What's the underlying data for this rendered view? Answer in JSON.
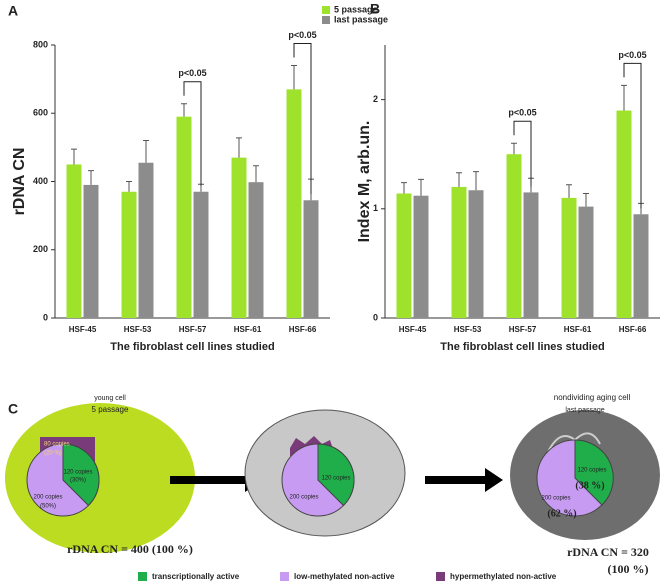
{
  "chart_data": [
    {
      "type": "bar",
      "panel": "A",
      "y_label": "rDNA CN",
      "x_label": "The fibroblast cell lines studied",
      "categories": [
        "HSF-45",
        "HSF-53",
        "HSF-57",
        "HSF-61",
        "HSF-66"
      ],
      "series": [
        {
          "name": "5 passage",
          "color": "#9ee22c",
          "values": [
            450,
            370,
            590,
            470,
            670
          ],
          "errors": [
            45,
            30,
            38,
            58,
            70
          ]
        },
        {
          "name": "last passage",
          "color": "#8c8c8c",
          "values": [
            390,
            455,
            370,
            398,
            345
          ],
          "errors": [
            42,
            65,
            22,
            48,
            62
          ]
        }
      ],
      "ylim": [
        0,
        800
      ],
      "yticks": [
        0,
        200,
        400,
        600,
        800
      ],
      "annotations": [
        "p<0.05",
        "p<0.05"
      ]
    },
    {
      "type": "bar",
      "panel": "B",
      "y_label": "Index M, arb.un.",
      "x_label": "The fibroblast cell lines studied",
      "categories": [
        "HSF-45",
        "HSF-53",
        "HSF-57",
        "HSF-61",
        "HSF-66"
      ],
      "series": [
        {
          "color": "#9ee22c",
          "values": [
            1.14,
            1.2,
            1.5,
            1.1,
            1.9
          ],
          "errors": [
            0.1,
            0.13,
            0.1,
            0.12,
            0.23
          ]
        },
        {
          "color": "#8c8c8c",
          "values": [
            1.12,
            1.17,
            1.15,
            1.02,
            0.95
          ],
          "errors": [
            0.15,
            0.17,
            0.13,
            0.12,
            0.1
          ]
        }
      ],
      "ylim": [
        0,
        2.5
      ],
      "yticks": [
        0,
        1,
        2
      ],
      "annotations": [
        "p<0.05",
        "p<0.05"
      ]
    }
  ],
  "panel_c": {
    "label": "C",
    "young": {
      "title": "young cell",
      "subtitle": "5 passage",
      "hyper": "80 copies",
      "hyper_pct": "(20 %)",
      "active": "120 copies",
      "active_pct": "(30%)",
      "low": "200 copies",
      "low_pct": "(50%)",
      "total": "rDNA CN = 400 (100 %)"
    },
    "middle": {
      "active": "120 copies",
      "low": "200 copies"
    },
    "old": {
      "title": "nondividing aging cell",
      "subtitle": "last passage",
      "active": "120 copies",
      "active_pct": "(38 %)",
      "low": "200 copies",
      "low_pct": "(62 %)",
      "total": "rDNA CN = 320",
      "total_pct": "(100 %)"
    },
    "legend": [
      "transcriptionally active",
      "low-methylated non-active",
      "hypermethylated non-active"
    ]
  }
}
